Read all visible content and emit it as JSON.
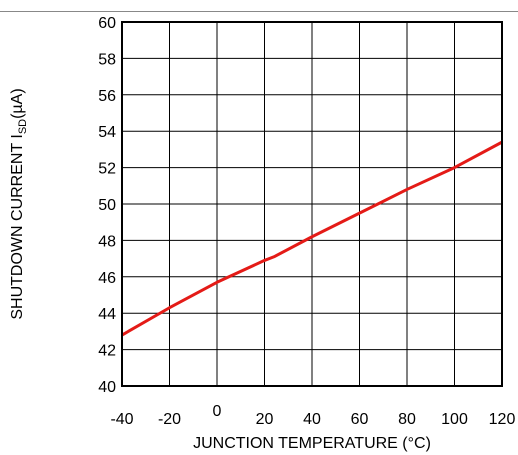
{
  "chart_data": {
    "type": "line",
    "title": "",
    "xlabel": "JUNCTION TEMPERATURE (°C)",
    "ylabel_main": "SHUTDOWN CURRENT I",
    "ylabel_sub": "SD",
    "ylabel_unit": "(µA)",
    "xlim": [
      -40,
      120
    ],
    "ylim": [
      40,
      60
    ],
    "x_ticks": [
      -40,
      -20,
      0,
      20,
      40,
      60,
      80,
      100,
      120
    ],
    "y_ticks": [
      40,
      42,
      44,
      46,
      48,
      50,
      52,
      54,
      56,
      58,
      60
    ],
    "grid": true,
    "line_color": "#e41b17",
    "series": [
      {
        "x": [
          -40,
          -20,
          0,
          20,
          24,
          40,
          60,
          80,
          100,
          120
        ],
        "y": [
          42.8,
          44.3,
          45.7,
          46.9,
          47.1,
          48.2,
          49.5,
          50.8,
          52.0,
          53.4
        ]
      }
    ]
  }
}
